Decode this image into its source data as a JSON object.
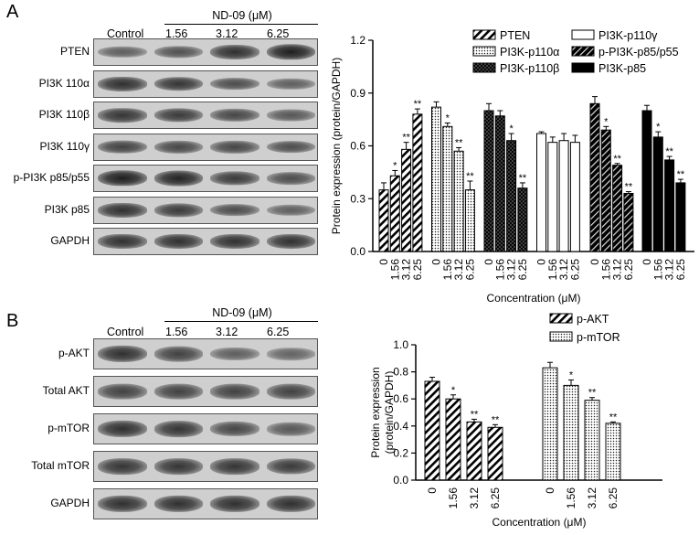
{
  "panels": {
    "A": {
      "letter": "A",
      "control_label": "Control",
      "treatment_label": "ND-09 (μM)",
      "doses": [
        "1.56",
        "3.12",
        "6.25"
      ],
      "blots": [
        {
          "label": "PTEN",
          "intensities": [
            0.45,
            0.55,
            0.85,
            1.0
          ]
        },
        {
          "label": "PI3K 110α",
          "intensities": [
            0.85,
            0.8,
            0.6,
            0.45
          ]
        },
        {
          "label": "PI3K 110β",
          "intensities": [
            0.8,
            0.75,
            0.65,
            0.5
          ]
        },
        {
          "label": "PI3K 110γ",
          "intensities": [
            0.7,
            0.65,
            0.65,
            0.6
          ]
        },
        {
          "label": "p-PI3K p85/p55",
          "intensities": [
            1.0,
            0.95,
            0.75,
            0.6
          ]
        },
        {
          "label": "PI3K p85",
          "intensities": [
            0.85,
            0.75,
            0.6,
            0.45
          ]
        },
        {
          "label": "GAPDH",
          "intensities": [
            0.85,
            0.85,
            0.85,
            0.85
          ]
        }
      ]
    },
    "B": {
      "letter": "B",
      "control_label": "Control",
      "treatment_label": "ND-09 (μM)",
      "doses": [
        "1.56",
        "3.12",
        "6.25"
      ],
      "blots": [
        {
          "label": "p-AKT",
          "intensities": [
            0.85,
            0.7,
            0.45,
            0.4
          ]
        },
        {
          "label": "Total AKT",
          "intensities": [
            0.7,
            0.7,
            0.7,
            0.7
          ]
        },
        {
          "label": "p-mTOR",
          "intensities": [
            0.85,
            0.8,
            0.65,
            0.5
          ]
        },
        {
          "label": "Total mTOR",
          "intensities": [
            0.8,
            0.8,
            0.8,
            0.75
          ]
        },
        {
          "label": "GAPDH",
          "intensities": [
            0.85,
            0.85,
            0.85,
            0.85
          ]
        }
      ]
    }
  },
  "chart_data": [
    {
      "type": "bar",
      "panel": "A",
      "categories": [
        "0",
        "1.56",
        "3.12",
        "6.25"
      ],
      "series": [
        {
          "name": "PTEN",
          "fill": "hatch-fwd",
          "values": [
            0.35,
            0.43,
            0.58,
            0.78
          ],
          "errors": [
            0.04,
            0.03,
            0.04,
            0.03
          ],
          "sig": [
            "",
            "*",
            "**",
            "**"
          ]
        },
        {
          "name": "PI3K-p110α",
          "fill": "dots",
          "values": [
            0.82,
            0.71,
            0.57,
            0.35
          ],
          "errors": [
            0.03,
            0.02,
            0.02,
            0.05
          ],
          "sig": [
            "",
            "*",
            "**",
            "**"
          ]
        },
        {
          "name": "PI3K-p110β",
          "fill": "crosshatch",
          "values": [
            0.8,
            0.77,
            0.63,
            0.36
          ],
          "errors": [
            0.04,
            0.03,
            0.04,
            0.03
          ],
          "sig": [
            "",
            "",
            "*",
            "**"
          ]
        },
        {
          "name": "PI3K-p110γ",
          "fill": "white",
          "values": [
            0.67,
            0.62,
            0.63,
            0.62
          ],
          "errors": [
            0.01,
            0.03,
            0.04,
            0.04
          ],
          "sig": [
            "",
            "",
            "",
            ""
          ]
        },
        {
          "name": "p-PI3K-p85/p55",
          "fill": "hatch-dark",
          "values": [
            0.84,
            0.69,
            0.49,
            0.33
          ],
          "errors": [
            0.04,
            0.02,
            0.01,
            0.01
          ],
          "sig": [
            "",
            "*",
            "**",
            "**"
          ]
        },
        {
          "name": "PI3K-p85",
          "fill": "black",
          "values": [
            0.8,
            0.65,
            0.52,
            0.39
          ],
          "errors": [
            0.03,
            0.03,
            0.02,
            0.02
          ],
          "sig": [
            "",
            "*",
            "**",
            "**"
          ]
        }
      ],
      "ylabel": "Protein expression (protein/GAPDH)",
      "xlabel": "Concentration (μM)",
      "ylim": [
        0,
        1.2
      ],
      "yticks": [
        "0.0",
        "0.3",
        "0.6",
        "0.9",
        "1.2"
      ],
      "legend_position": "top"
    },
    {
      "type": "bar",
      "panel": "B",
      "categories": [
        "0",
        "1.56",
        "3.12",
        "6.25"
      ],
      "series": [
        {
          "name": "p-AKT",
          "fill": "hatch-fwd",
          "values": [
            0.73,
            0.6,
            0.43,
            0.39
          ],
          "errors": [
            0.03,
            0.03,
            0.02,
            0.02
          ],
          "sig": [
            "",
            "*",
            "**",
            "**"
          ]
        },
        {
          "name": "p-mTOR",
          "fill": "dots",
          "values": [
            0.83,
            0.7,
            0.59,
            0.42
          ],
          "errors": [
            0.04,
            0.04,
            0.02,
            0.01
          ],
          "sig": [
            "",
            "*",
            "**",
            "**"
          ]
        }
      ],
      "ylabel": "Protein expression (protein/GAPDH)",
      "ylabel_lines": [
        "Protein expression",
        "(protein/GAPDH)"
      ],
      "xlabel": "Concentration (μM)",
      "ylim": [
        0,
        1.0
      ],
      "yticks": [
        "0.0",
        "0.2",
        "0.4",
        "0.6",
        "0.8",
        "1.0"
      ],
      "legend_position": "top-right"
    }
  ]
}
